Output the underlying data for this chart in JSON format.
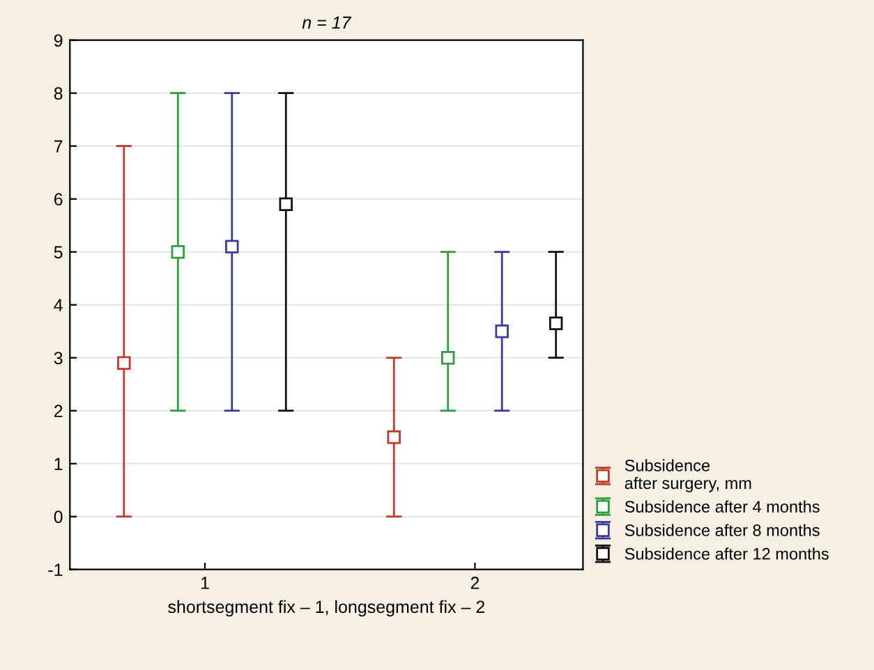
{
  "chart_data": {
    "type": "scatter",
    "title": "n = 17",
    "xlabel": "shortsegment fix – 1, longsegment fix – 2",
    "xlim": [
      0.5,
      2.4
    ],
    "xticks": [
      1,
      2
    ],
    "ylim": [
      -1,
      9
    ],
    "yticks": [
      -1,
      0,
      1,
      2,
      3,
      4,
      5,
      6,
      7,
      8,
      9
    ],
    "grid": "y",
    "legend": "right",
    "marker": "square",
    "series": [
      {
        "name": "Subsidence\nafter surgery, mm",
        "color": "#c0392b",
        "x": [
          0.7,
          1.7
        ],
        "values": [
          2.9,
          1.5
        ],
        "errors": [
          [
            0,
            7
          ],
          [
            0,
            3
          ]
        ]
      },
      {
        "name": "Subsidence after 4 months",
        "color": "#2e9e3a",
        "x": [
          0.9,
          1.9
        ],
        "values": [
          5.0,
          3.0
        ],
        "errors": [
          [
            2,
            8
          ],
          [
            2,
            5
          ]
        ]
      },
      {
        "name": "Subsidence after 8 months",
        "color": "#3a3a9e",
        "x": [
          1.1,
          2.1
        ],
        "values": [
          5.1,
          3.5
        ],
        "errors": [
          [
            2,
            8
          ],
          [
            2,
            5
          ]
        ]
      },
      {
        "name": "Subsidence after 12 months",
        "color": "#111111",
        "x": [
          1.3,
          2.3
        ],
        "values": [
          5.9,
          3.65
        ],
        "errors": [
          [
            2,
            8
          ],
          [
            3,
            5
          ]
        ]
      }
    ]
  }
}
